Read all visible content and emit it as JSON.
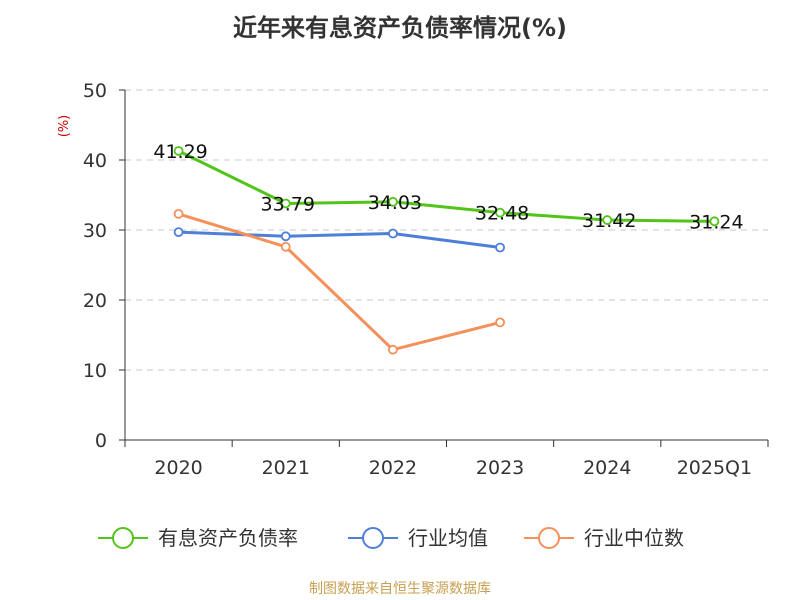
{
  "title": "近年来有息资产负债率情况(%)",
  "source": "制图数据来自恒生聚源数据库",
  "chart_data": {
    "type": "line",
    "title": "近年来有息资产负债率情况(%)",
    "xlabel": "",
    "ylabel": "(%)",
    "categories": [
      "2020",
      "2021",
      "2022",
      "2023",
      "2024",
      "2025Q1"
    ],
    "ylim": [
      0,
      50
    ],
    "yticks": [
      0,
      10,
      20,
      30,
      40,
      50
    ],
    "grid": true,
    "legend_position": "bottom",
    "series": [
      {
        "name": "有息资产负债率",
        "color": "#52c41a",
        "values": [
          41.29,
          33.79,
          34.03,
          32.48,
          31.42,
          31.24
        ],
        "labels": [
          "41.29",
          "33.79",
          "34.03",
          "32.48",
          "31.42",
          "31.24"
        ]
      },
      {
        "name": "行业均值",
        "color": "#4e7fd8",
        "values": [
          29.7,
          29.1,
          29.5,
          27.5,
          null,
          null
        ]
      },
      {
        "name": "行业中位数",
        "color": "#f5905a",
        "values": [
          32.3,
          27.6,
          12.9,
          16.8,
          null,
          null
        ]
      }
    ]
  }
}
